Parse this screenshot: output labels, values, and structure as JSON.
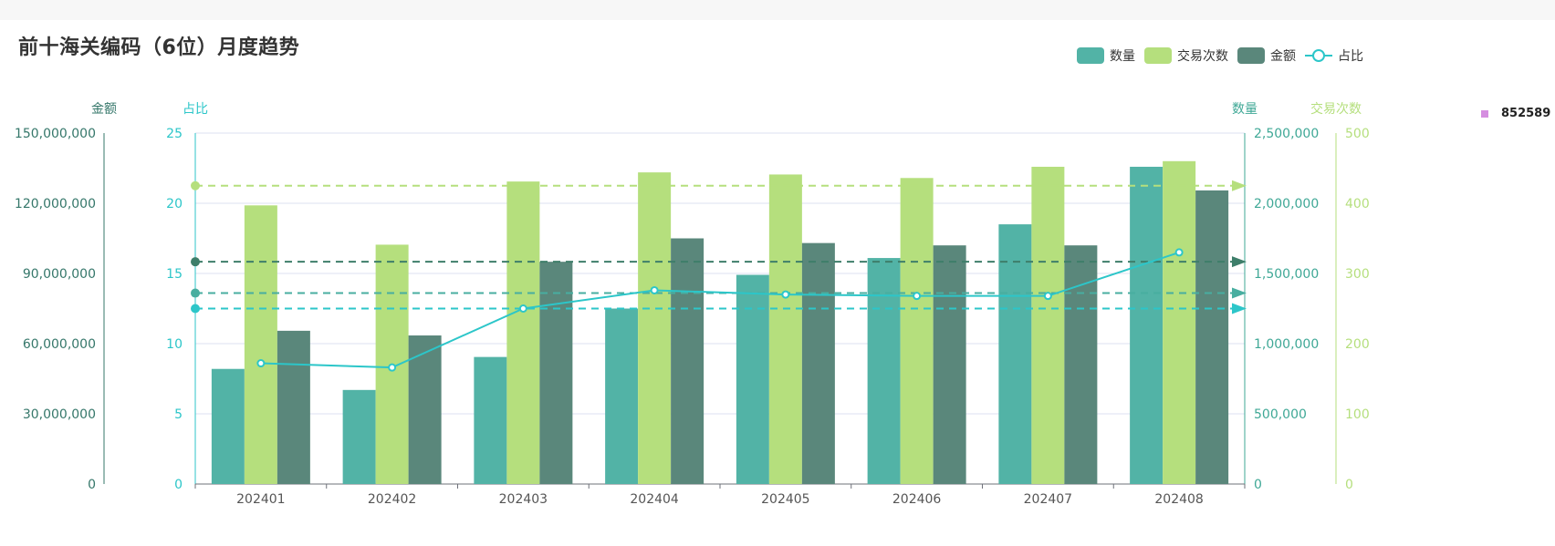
{
  "title": "前十海关编码（6位）月度趋势",
  "side_label": "852589",
  "colors": {
    "qty": "#52b3a6",
    "count": "#b5df7d",
    "amount": "#5a877b",
    "ratio": "#2cc6c9",
    "axis_amount": "#35776a",
    "axis_ratio": "#2cc6c9",
    "axis_qty": "#3fa896",
    "axis_count": "#b5df7d",
    "side": "#d58ee0"
  },
  "legend": [
    {
      "label": "数量",
      "key": "qty",
      "kind": "bar"
    },
    {
      "label": "交易次数",
      "key": "count",
      "kind": "bar"
    },
    {
      "label": "金额",
      "key": "amount",
      "kind": "bar"
    },
    {
      "label": "占比",
      "key": "ratio",
      "kind": "line"
    }
  ],
  "chart_data": {
    "type": "bar",
    "categories": [
      "202401",
      "202402",
      "202403",
      "202404",
      "202405",
      "202406",
      "202407",
      "202408"
    ],
    "series": [
      {
        "name": "数量",
        "key": "qty",
        "type": "bar",
        "axis": "qty",
        "values": [
          820000,
          670000,
          905000,
          1250000,
          1490000,
          1610000,
          1850000,
          2260000
        ]
      },
      {
        "name": "交易次数",
        "key": "count",
        "type": "bar",
        "axis": "count",
        "values": [
          397,
          341,
          431,
          444,
          441,
          436,
          452,
          460
        ]
      },
      {
        "name": "金额",
        "key": "amount",
        "type": "bar",
        "axis": "amount",
        "values": [
          65500000,
          63500000,
          95000000,
          105000000,
          103000000,
          102000000,
          102000000,
          125500000
        ]
      },
      {
        "name": "占比",
        "key": "ratio",
        "type": "line",
        "axis": "ratio",
        "values": [
          8.6,
          8.3,
          12.5,
          13.8,
          13.5,
          13.4,
          13.4,
          16.5
        ]
      }
    ],
    "axes": {
      "amount": {
        "label": "金额",
        "min": 0,
        "max": 150000000,
        "ticks": [
          "0",
          "30,000,000",
          "60,000,000",
          "90,000,000",
          "120,000,000",
          "150,000,000"
        ]
      },
      "ratio": {
        "label": "占比",
        "min": 0,
        "max": 25,
        "ticks": [
          "0",
          "5",
          "10",
          "15",
          "20",
          "25"
        ]
      },
      "qty": {
        "label": "数量",
        "min": 0,
        "max": 2500000,
        "ticks": [
          "0",
          "500,000",
          "1,000,000",
          "1,500,000",
          "2,000,000",
          "2,500,000"
        ]
      },
      "count": {
        "label": "交易次数",
        "min": 0,
        "max": 500,
        "ticks": [
          "0",
          "100",
          "200",
          "300",
          "400",
          "500"
        ]
      }
    },
    "average_lines": [
      {
        "axis": "count",
        "value": 425,
        "color_key": "count"
      },
      {
        "axis": "amount",
        "value": 95000000,
        "color_key": "amount"
      },
      {
        "axis": "qty",
        "value": 1360000,
        "color_key": "qty"
      },
      {
        "axis": "ratio",
        "value": 12.5,
        "color_key": "ratio"
      }
    ],
    "grid": true,
    "legend_position": "top-right"
  }
}
